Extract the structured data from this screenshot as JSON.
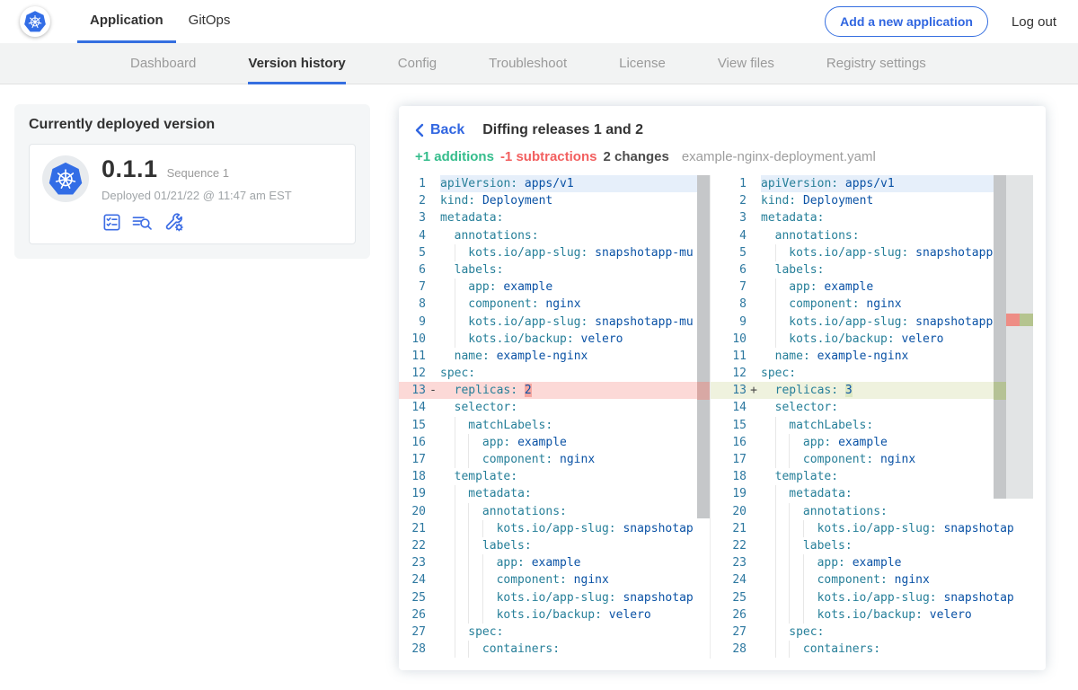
{
  "topnav": {
    "tabs": [
      {
        "label": "Application",
        "active": true
      },
      {
        "label": "GitOps",
        "active": false
      }
    ],
    "add_button": "Add a new application",
    "logout": "Log out"
  },
  "subnav": {
    "items": [
      {
        "label": "Dashboard",
        "active": false
      },
      {
        "label": "Version history",
        "active": true
      },
      {
        "label": "Config",
        "active": false
      },
      {
        "label": "Troubleshoot",
        "active": false
      },
      {
        "label": "License",
        "active": false
      },
      {
        "label": "View files",
        "active": false
      },
      {
        "label": "Registry settings",
        "active": false
      }
    ]
  },
  "deployed_card": {
    "title": "Currently deployed version",
    "version": "0.1.1",
    "sequence": "Sequence 1",
    "deployed": "Deployed 01/21/22 @ 11:47 am EST",
    "icons": [
      "checklist-icon",
      "log-search-icon",
      "wrench-gear-icon"
    ]
  },
  "diff": {
    "back_label": "Back",
    "title": "Diffing releases 1 and 2",
    "additions": "+1 additions",
    "subtractions": "-1 subtractions",
    "changes": "2 changes",
    "filename": "example-nginx-deployment.yaml",
    "left_lines": [
      {
        "n": 1,
        "i": 0,
        "k": "apiVersion:",
        "v": "apps/v1",
        "hl": "cur"
      },
      {
        "n": 2,
        "i": 0,
        "k": "kind:",
        "v": "Deployment"
      },
      {
        "n": 3,
        "i": 0,
        "k": "metadata:",
        "v": ""
      },
      {
        "n": 4,
        "i": 2,
        "k": "annotations:",
        "v": ""
      },
      {
        "n": 5,
        "i": 4,
        "k": "kots.io/app-slug:",
        "v": "snapshotapp-mu"
      },
      {
        "n": 6,
        "i": 2,
        "k": "labels:",
        "v": ""
      },
      {
        "n": 7,
        "i": 4,
        "k": "app:",
        "v": "example"
      },
      {
        "n": 8,
        "i": 4,
        "k": "component:",
        "v": "nginx"
      },
      {
        "n": 9,
        "i": 4,
        "k": "kots.io/app-slug:",
        "v": "snapshotapp-mu"
      },
      {
        "n": 10,
        "i": 4,
        "k": "kots.io/backup:",
        "v": "velero"
      },
      {
        "n": 11,
        "i": 2,
        "k": "name:",
        "v": "example-nginx"
      },
      {
        "n": 12,
        "i": 0,
        "k": "spec:",
        "v": ""
      },
      {
        "n": 13,
        "i": 2,
        "k": "replicas:",
        "v": "2",
        "sign": "-",
        "hl": "del",
        "vc": true
      },
      {
        "n": 14,
        "i": 2,
        "k": "selector:",
        "v": ""
      },
      {
        "n": 15,
        "i": 4,
        "k": "matchLabels:",
        "v": ""
      },
      {
        "n": 16,
        "i": 6,
        "k": "app:",
        "v": "example"
      },
      {
        "n": 17,
        "i": 6,
        "k": "component:",
        "v": "nginx"
      },
      {
        "n": 18,
        "i": 2,
        "k": "template:",
        "v": ""
      },
      {
        "n": 19,
        "i": 4,
        "k": "metadata:",
        "v": ""
      },
      {
        "n": 20,
        "i": 6,
        "k": "annotations:",
        "v": ""
      },
      {
        "n": 21,
        "i": 8,
        "k": "kots.io/app-slug:",
        "v": "snapshotap"
      },
      {
        "n": 22,
        "i": 6,
        "k": "labels:",
        "v": ""
      },
      {
        "n": 23,
        "i": 8,
        "k": "app:",
        "v": "example"
      },
      {
        "n": 24,
        "i": 8,
        "k": "component:",
        "v": "nginx"
      },
      {
        "n": 25,
        "i": 8,
        "k": "kots.io/app-slug:",
        "v": "snapshotap"
      },
      {
        "n": 26,
        "i": 8,
        "k": "kots.io/backup:",
        "v": "velero"
      },
      {
        "n": 27,
        "i": 4,
        "k": "spec:",
        "v": ""
      },
      {
        "n": 28,
        "i": 6,
        "k": "containers:",
        "v": ""
      }
    ],
    "right_lines": [
      {
        "n": 1,
        "i": 0,
        "k": "apiVersion:",
        "v": "apps/v1",
        "hl": "cur"
      },
      {
        "n": 2,
        "i": 0,
        "k": "kind:",
        "v": "Deployment"
      },
      {
        "n": 3,
        "i": 0,
        "k": "metadata:",
        "v": ""
      },
      {
        "n": 4,
        "i": 2,
        "k": "annotations:",
        "v": ""
      },
      {
        "n": 5,
        "i": 4,
        "k": "kots.io/app-slug:",
        "v": "snapshotapp-mu"
      },
      {
        "n": 6,
        "i": 2,
        "k": "labels:",
        "v": ""
      },
      {
        "n": 7,
        "i": 4,
        "k": "app:",
        "v": "example"
      },
      {
        "n": 8,
        "i": 4,
        "k": "component:",
        "v": "nginx"
      },
      {
        "n": 9,
        "i": 4,
        "k": "kots.io/app-slug:",
        "v": "snapshotapp-mu"
      },
      {
        "n": 10,
        "i": 4,
        "k": "kots.io/backup:",
        "v": "velero"
      },
      {
        "n": 11,
        "i": 2,
        "k": "name:",
        "v": "example-nginx"
      },
      {
        "n": 12,
        "i": 0,
        "k": "spec:",
        "v": ""
      },
      {
        "n": 13,
        "i": 2,
        "k": "replicas:",
        "v": "3",
        "sign": "+",
        "hl": "ins",
        "vc": true
      },
      {
        "n": 14,
        "i": 2,
        "k": "selector:",
        "v": ""
      },
      {
        "n": 15,
        "i": 4,
        "k": "matchLabels:",
        "v": ""
      },
      {
        "n": 16,
        "i": 6,
        "k": "app:",
        "v": "example"
      },
      {
        "n": 17,
        "i": 6,
        "k": "component:",
        "v": "nginx"
      },
      {
        "n": 18,
        "i": 2,
        "k": "template:",
        "v": ""
      },
      {
        "n": 19,
        "i": 4,
        "k": "metadata:",
        "v": ""
      },
      {
        "n": 20,
        "i": 6,
        "k": "annotations:",
        "v": ""
      },
      {
        "n": 21,
        "i": 8,
        "k": "kots.io/app-slug:",
        "v": "snapshotap"
      },
      {
        "n": 22,
        "i": 6,
        "k": "labels:",
        "v": ""
      },
      {
        "n": 23,
        "i": 8,
        "k": "app:",
        "v": "example"
      },
      {
        "n": 24,
        "i": 8,
        "k": "component:",
        "v": "nginx"
      },
      {
        "n": 25,
        "i": 8,
        "k": "kots.io/app-slug:",
        "v": "snapshotap"
      },
      {
        "n": 26,
        "i": 8,
        "k": "kots.io/backup:",
        "v": "velero"
      },
      {
        "n": 27,
        "i": 4,
        "k": "spec:",
        "v": ""
      },
      {
        "n": 28,
        "i": 6,
        "k": "containers:",
        "v": ""
      }
    ]
  },
  "colors": {
    "accent_blue": "#356fe0",
    "kubernetes_blue": "#326de6",
    "addition_green": "#35bd8c",
    "subtraction_red": "#f25f5f",
    "del_row": "#fcd9d7",
    "del_char": "#f5a6a0",
    "ins_row": "#eff2de",
    "ins_char": "#dce8c2",
    "yaml_key": "#267f99",
    "yaml_value": "#0a52a5",
    "line_number": "#2d78a0"
  }
}
